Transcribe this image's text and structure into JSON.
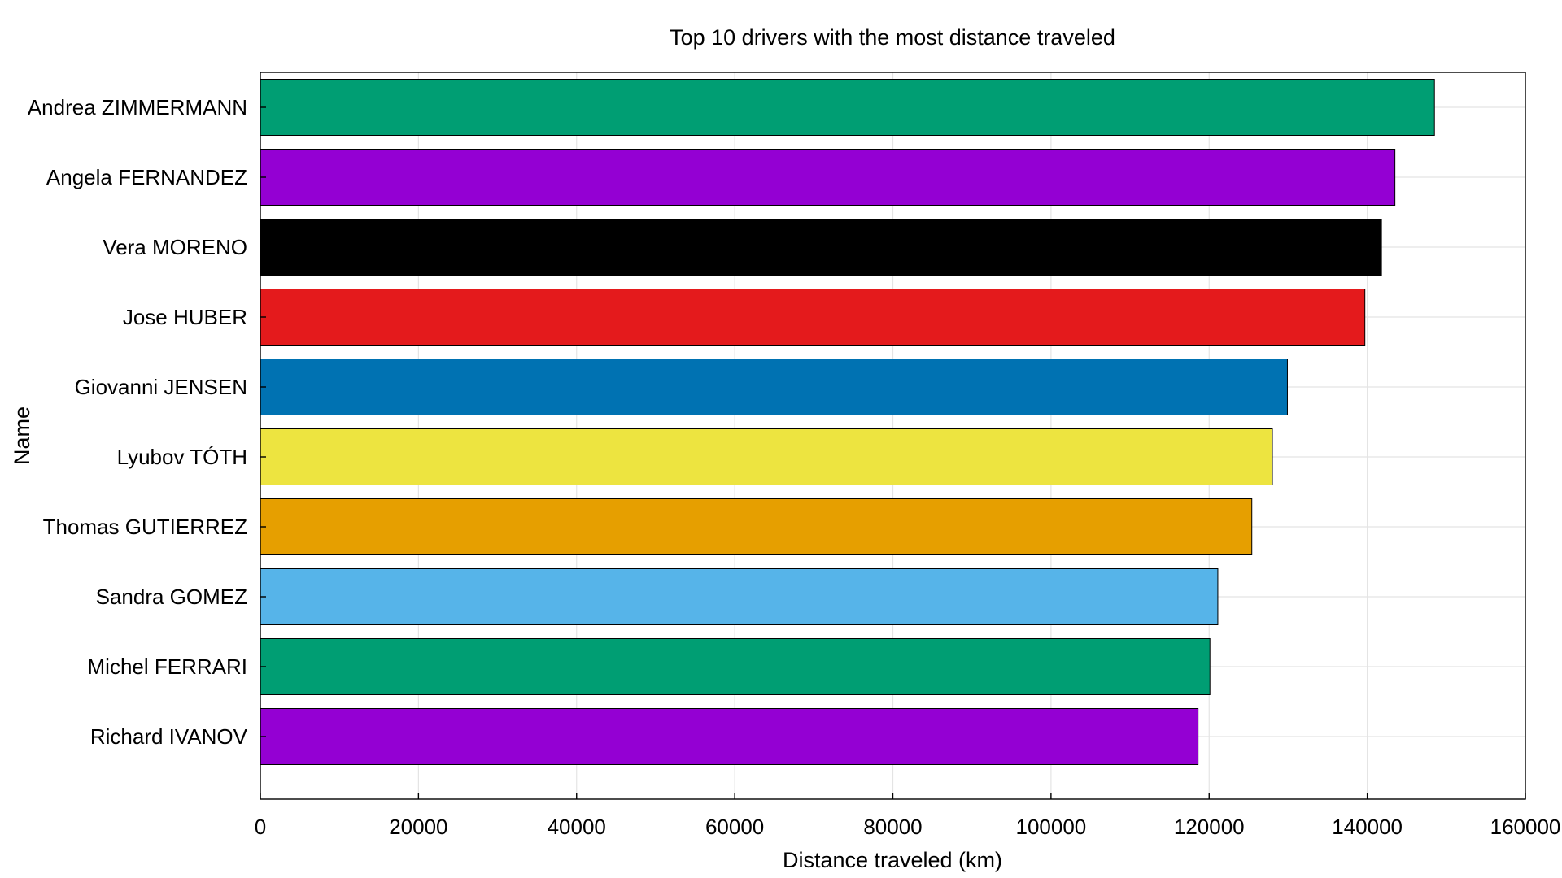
{
  "chart_data": {
    "type": "bar",
    "orientation": "horizontal",
    "title": "Top 10 drivers with the most distance traveled",
    "xlabel": "Distance traveled (km)",
    "ylabel": "Name",
    "xlim": [
      0,
      160000
    ],
    "xticks": [
      "0",
      "20000",
      "40000",
      "60000",
      "80000",
      "100000",
      "120000",
      "140000",
      "160000"
    ],
    "grid": true,
    "categories": [
      "Andrea ZIMMERMANN",
      "Angela FERNANDEZ",
      "Vera MORENO",
      "Jose HUBER",
      "Giovanni JENSEN",
      "Lyubov TÓTH",
      "Thomas GUTIERREZ",
      "Sandra GOMEZ",
      "Michel FERRARI",
      "Richard IVANOV"
    ],
    "values": [
      148500,
      143500,
      141800,
      139700,
      129900,
      128000,
      125400,
      121100,
      120100,
      118600
    ],
    "colors": [
      "#009e73",
      "#9400d3",
      "#000000",
      "#e41a1c",
      "#0072b2",
      "#ede440",
      "#e69f00",
      "#56b4e9",
      "#009e73",
      "#9400d3"
    ]
  }
}
